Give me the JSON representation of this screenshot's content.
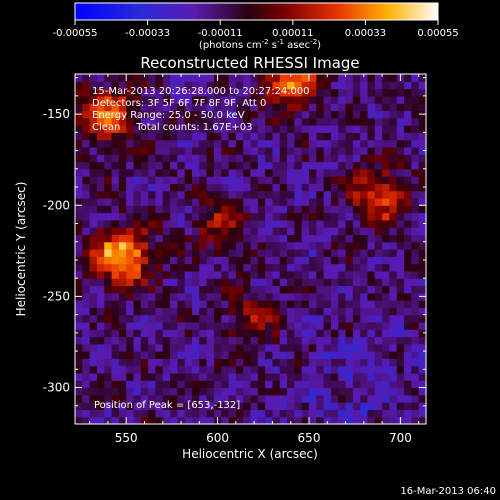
{
  "colorbar": {
    "ticks": [
      "-0.00055",
      "-0.00033",
      "-0.00011",
      "0.00011",
      "0.00033",
      "0.00055"
    ],
    "units_prefix": "(photons cm",
    "units_e1": "-2",
    "units_s": " s",
    "units_e2": "-1",
    "units_asec": " asec",
    "units_e3": "-2",
    "units_suffix": ")"
  },
  "chart_data": {
    "type": "heatmap",
    "title": "Reconstructed RHESSI Image",
    "xlabel": "Heliocentric X (arcsec)",
    "ylabel": "Heliocentric Y (arcsec)",
    "xlim": [
      522,
      714
    ],
    "ylim": [
      -320,
      -128
    ],
    "x_ticks": [
      550,
      600,
      650,
      700
    ],
    "y_ticks": [
      -300,
      -250,
      -200,
      -150
    ],
    "x_tick_labels": [
      "550",
      "600",
      "650",
      "700"
    ],
    "y_tick_labels": [
      "-300",
      "-250",
      "-200",
      "-150"
    ],
    "color_range": [
      -0.00055,
      0.00055
    ],
    "colormap": "blue-purple-red-yellow-white",
    "annotations": [
      "15-Mar-2013 20:26:28.000 to 20:27:24.000",
      "Detectors: 3F 5F 6F 7F 8F 9F, Att 0",
      "Energy Range: 25.0 - 50.0 keV",
      "Clean     Total counts: 1.67E+03"
    ],
    "peak_label": "Position of Peak = [653,-132]",
    "peak_position": [
      653,
      -132
    ],
    "bright_regions": [
      {
        "x": 548,
        "y": -228,
        "level": 0.00055
      },
      {
        "x": 540,
        "y": -150,
        "level": 0.0004
      },
      {
        "x": 640,
        "y": -132,
        "level": 0.0004
      },
      {
        "x": 688,
        "y": -195,
        "level": 0.00035
      },
      {
        "x": 600,
        "y": -210,
        "level": 0.0002
      },
      {
        "x": 618,
        "y": -262,
        "level": 0.0002
      }
    ]
  },
  "footer": {
    "timestamp": "16-Mar-2013 06:40"
  },
  "colors": {
    "background": "#000000",
    "text": "#ffffff"
  }
}
